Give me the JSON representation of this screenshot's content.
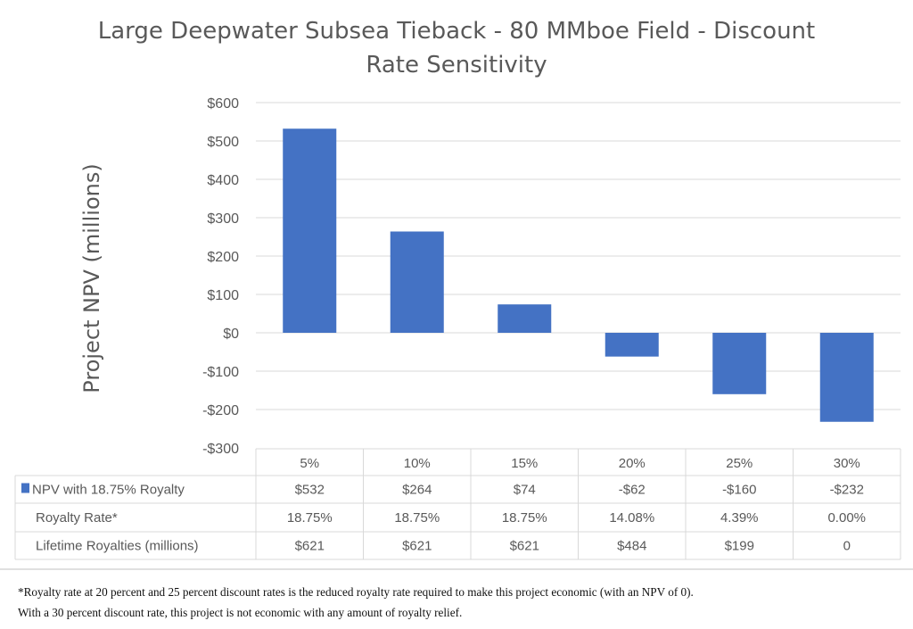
{
  "chart_data": {
    "type": "bar",
    "title": "Large Deepwater Subsea Tieback - 80 MMboe Field - Discount Rate Sensitivity",
    "title_lines": [
      "Large Deepwater Subsea Tieback - 80 MMboe Field - Discount",
      "Rate Sensitivity"
    ],
    "ylabel": "Project NPV (millions)",
    "xlabel": "",
    "categories": [
      "5%",
      "10%",
      "15%",
      "20%",
      "25%",
      "30%"
    ],
    "series": [
      {
        "name": "NPV with 18.75% Royalty",
        "values": [
          532,
          264,
          74,
          -62,
          -160,
          -232
        ],
        "color": "#4472C4"
      }
    ],
    "ylim": [
      -300,
      600
    ],
    "yticks": [
      600,
      500,
      400,
      300,
      200,
      100,
      0,
      -100,
      -200,
      -300
    ],
    "ytick_labels": [
      "$600",
      "$500",
      "$400",
      "$300",
      "$200",
      "$100",
      "$0",
      "-$100",
      "-$200",
      "-$300"
    ],
    "grid": true,
    "legend": "data-table",
    "data_table": {
      "rows": [
        {
          "label": "NPV with 18.75% Royalty",
          "legend_key": true,
          "values": [
            "$532",
            "$264",
            "$74",
            "-$62",
            "-$160",
            "-$232"
          ]
        },
        {
          "label": "Royalty Rate*",
          "legend_key": false,
          "values": [
            "18.75%",
            "18.75%",
            "18.75%",
            "14.08%",
            "4.39%",
            "0.00%"
          ]
        },
        {
          "label": "Lifetime Royalties (millions)",
          "legend_key": false,
          "values": [
            "$621",
            "$621",
            "$621",
            "$484",
            "$199",
            "0"
          ]
        }
      ]
    }
  },
  "footnote": {
    "line1": "*Royalty rate at 20 percent and 25 percent discount rates is the reduced royalty rate required to make this project economic (with an NPV of 0).",
    "line2": "With a 30 percent discount rate, this project is not economic with any amount of royalty relief."
  }
}
